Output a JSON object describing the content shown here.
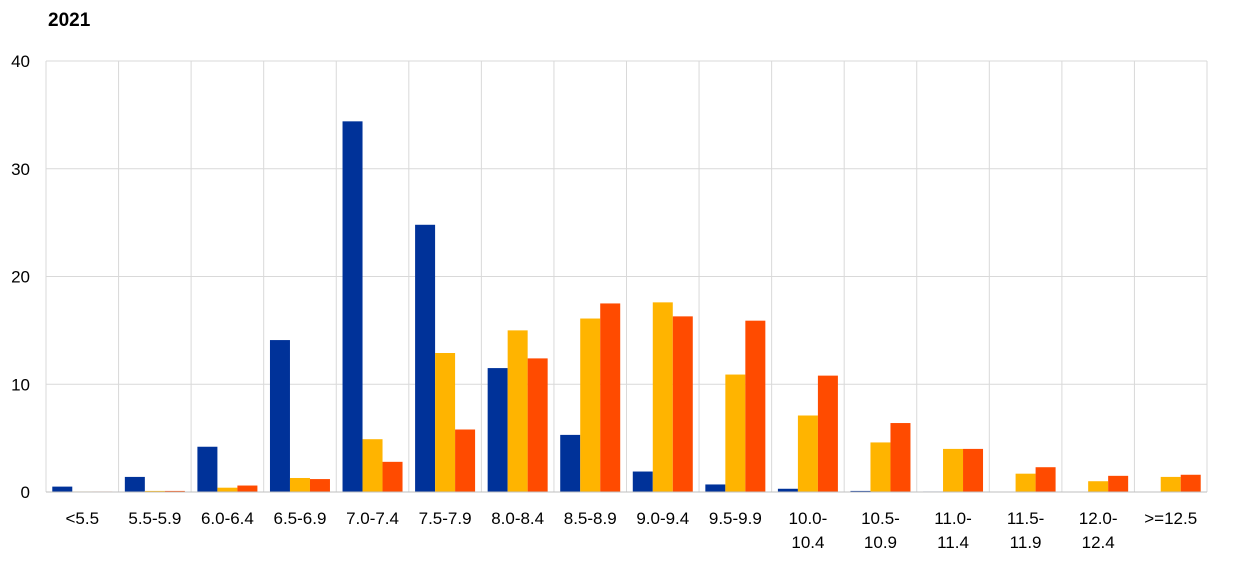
{
  "chart_data": {
    "type": "bar",
    "title": "2021",
    "xlabel": "",
    "ylabel": "",
    "ylim": [
      0,
      40
    ],
    "yticks": [
      "0",
      "10",
      "20",
      "30",
      "40"
    ],
    "grid": true,
    "categories": [
      [
        "<5.5"
      ],
      [
        "5.5-5.9"
      ],
      [
        "6.0-6.4"
      ],
      [
        "6.5-6.9"
      ],
      [
        "7.0-7.4"
      ],
      [
        "7.5-7.9"
      ],
      [
        "8.0-8.4"
      ],
      [
        "8.5-8.9"
      ],
      [
        "9.0-9.4"
      ],
      [
        "9.5-9.9"
      ],
      [
        "10.0-",
        "10.4"
      ],
      [
        "10.5-",
        "10.9"
      ],
      [
        "11.0-",
        "11.4"
      ],
      [
        "11.5-",
        "11.9"
      ],
      [
        "12.0-",
        "12.4"
      ],
      [
        ">=12.5"
      ]
    ],
    "series": [
      {
        "color": "#003299",
        "values": [
          0.5,
          1.4,
          4.2,
          14.1,
          34.4,
          24.8,
          11.5,
          5.3,
          1.9,
          0.7,
          0.3,
          0.1,
          0.05,
          0.02,
          0.02,
          0.0
        ]
      },
      {
        "color": "#FFB400",
        "values": [
          0.05,
          0.1,
          0.4,
          1.3,
          4.9,
          12.9,
          15.0,
          16.1,
          17.6,
          10.9,
          7.1,
          4.6,
          4.0,
          1.7,
          1.0,
          1.4
        ]
      },
      {
        "color": "#FF4B00",
        "values": [
          0.05,
          0.1,
          0.6,
          1.2,
          2.8,
          5.8,
          12.4,
          17.5,
          16.3,
          15.9,
          10.8,
          6.4,
          4.0,
          2.3,
          1.5,
          1.6
        ]
      }
    ]
  }
}
